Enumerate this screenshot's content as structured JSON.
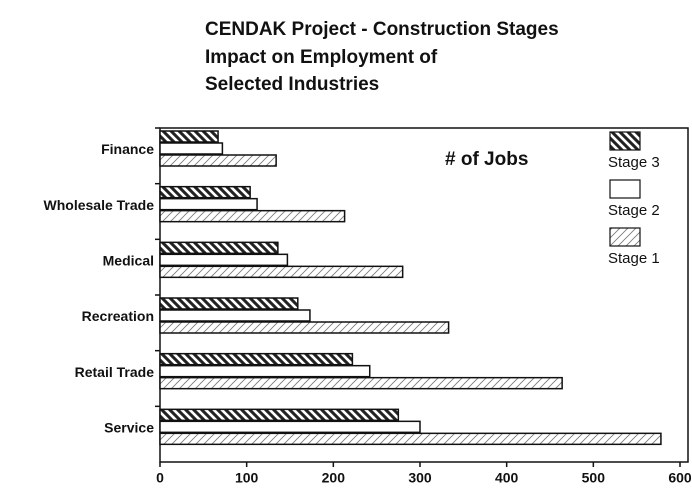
{
  "chart_data": {
    "type": "barh",
    "title": [
      "CENDAK Project - Construction Stages",
      "Impact on Employment of",
      "Selected Industries"
    ],
    "annotation": "# of Jobs",
    "categories": [
      "Finance",
      "Wholesale Trade",
      "Medical",
      "Recreation",
      "Retail Trade",
      "Service"
    ],
    "series": [
      {
        "name": "Stage 3",
        "color": "#222222",
        "values": [
          67,
          104,
          136,
          159,
          222,
          275
        ]
      },
      {
        "name": "Stage 2",
        "color": "#ffffff",
        "values": [
          72,
          112,
          147,
          173,
          242,
          300
        ]
      },
      {
        "name": "Stage 1",
        "color": "#777777",
        "values": [
          134,
          213,
          280,
          333,
          464,
          578
        ]
      }
    ],
    "xlim": [
      0,
      600
    ],
    "xticks": [
      0,
      100,
      200,
      300,
      400,
      500,
      600
    ],
    "legend": "right"
  }
}
